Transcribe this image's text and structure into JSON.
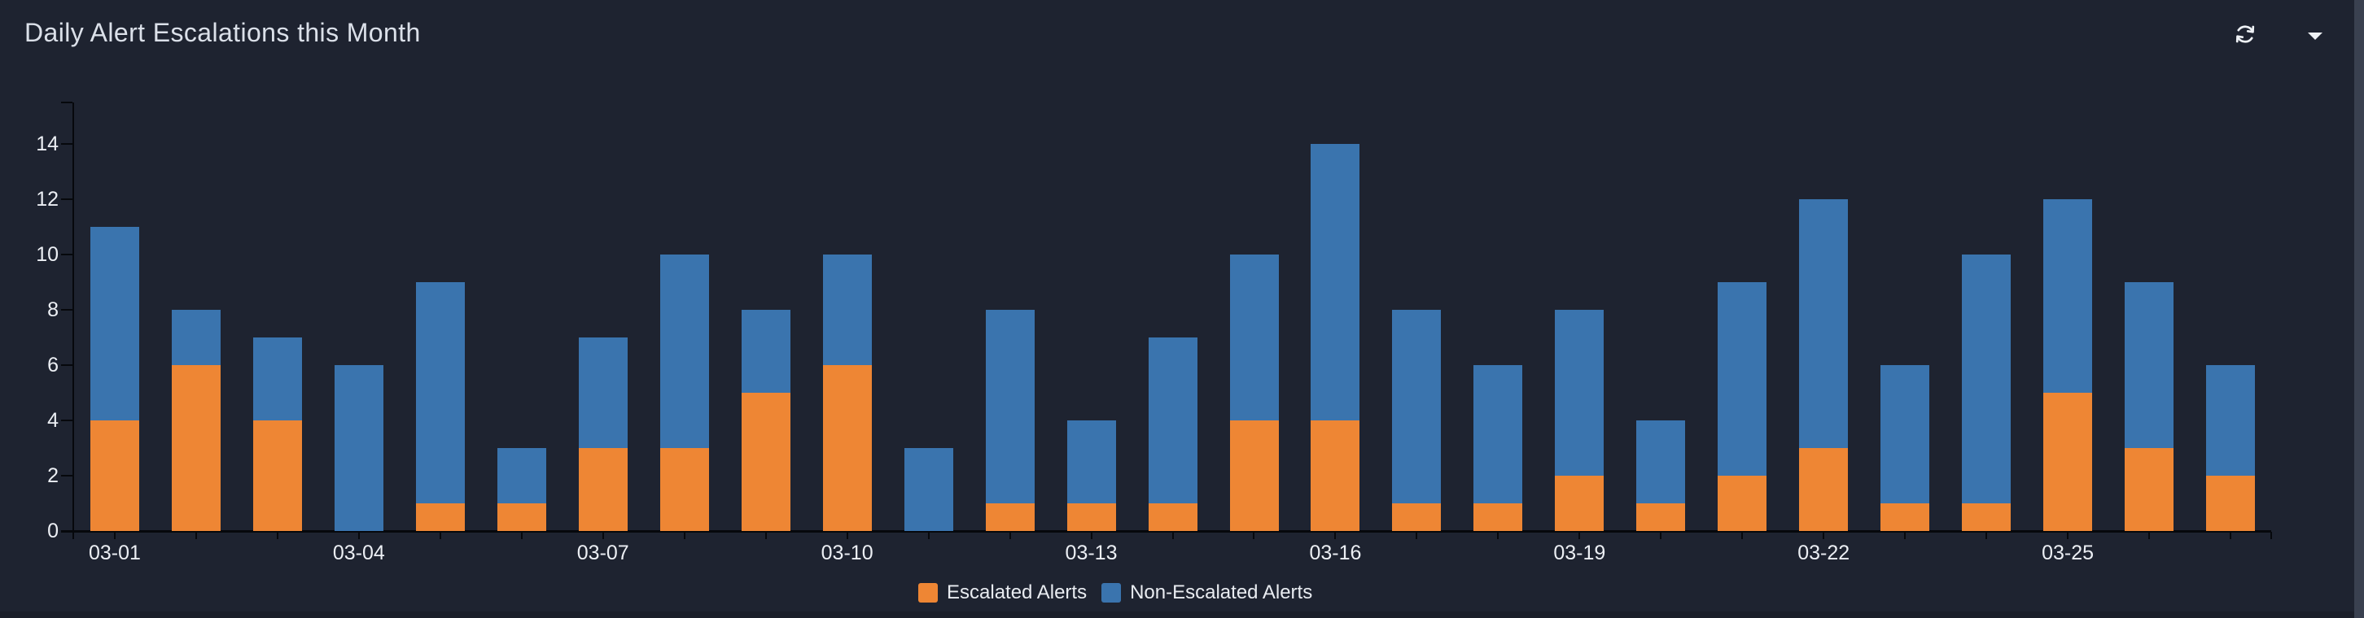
{
  "panel": {
    "title": "Daily Alert Escalations this Month",
    "icons": [
      "refresh-icon",
      "caret-down-icon"
    ],
    "has_scrollbar": true
  },
  "colors": {
    "background": "#1e2330",
    "escalated": "#ee8634",
    "non_escalated": "#3a74ae",
    "axis": "#06080c",
    "text": "#eceff4",
    "title_text": "#dbe0e9",
    "scrollbar": "#3a4150"
  },
  "chart_data": {
    "type": "bar",
    "stacked": true,
    "title": "Daily Alert Escalations this Month",
    "xlabel": "",
    "ylabel": "",
    "grid": false,
    "legend_position": "bottom-center",
    "ylim": [
      0,
      14
    ],
    "y_ticks": [
      0,
      2,
      4,
      6,
      8,
      10,
      12,
      14
    ],
    "categories": [
      "03-01",
      "03-02",
      "03-03",
      "03-04",
      "03-05",
      "03-06",
      "03-07",
      "03-08",
      "03-09",
      "03-10",
      "03-11",
      "03-12",
      "03-13",
      "03-14",
      "03-15",
      "03-16",
      "03-17",
      "03-18",
      "03-19",
      "03-20",
      "03-21",
      "03-22",
      "03-23",
      "03-24",
      "03-25",
      "03-26",
      "03-27"
    ],
    "visible_x_tick_labels": [
      "03-01",
      "03-04",
      "03-07",
      "03-10",
      "03-13",
      "03-16",
      "03-19",
      "03-22",
      "03-25"
    ],
    "x_label_every": 3,
    "series": [
      {
        "name": "Escalated Alerts",
        "color": "#ee8634",
        "values": [
          4,
          6,
          4,
          0,
          1,
          1,
          3,
          3,
          5,
          6,
          0,
          1,
          1,
          1,
          4,
          4,
          1,
          1,
          2,
          1,
          2,
          3,
          1,
          1,
          5,
          3,
          2
        ]
      },
      {
        "name": "Non-Escalated Alerts",
        "color": "#3a74ae",
        "values": [
          7,
          2,
          3,
          6,
          8,
          2,
          4,
          7,
          3,
          4,
          3,
          7,
          3,
          6,
          6,
          10,
          7,
          5,
          6,
          3,
          7,
          9,
          5,
          9,
          7,
          6,
          4
        ]
      }
    ],
    "totals": [
      11,
      8,
      7,
      6,
      9,
      3,
      7,
      10,
      8,
      10,
      3,
      8,
      4,
      7,
      10,
      14,
      8,
      6,
      8,
      4,
      9,
      12,
      6,
      10,
      12,
      9,
      6
    ]
  },
  "legend": {
    "items": [
      {
        "label": "Escalated Alerts",
        "color": "#ee8634"
      },
      {
        "label": "Non-Escalated Alerts",
        "color": "#3a74ae"
      }
    ]
  }
}
